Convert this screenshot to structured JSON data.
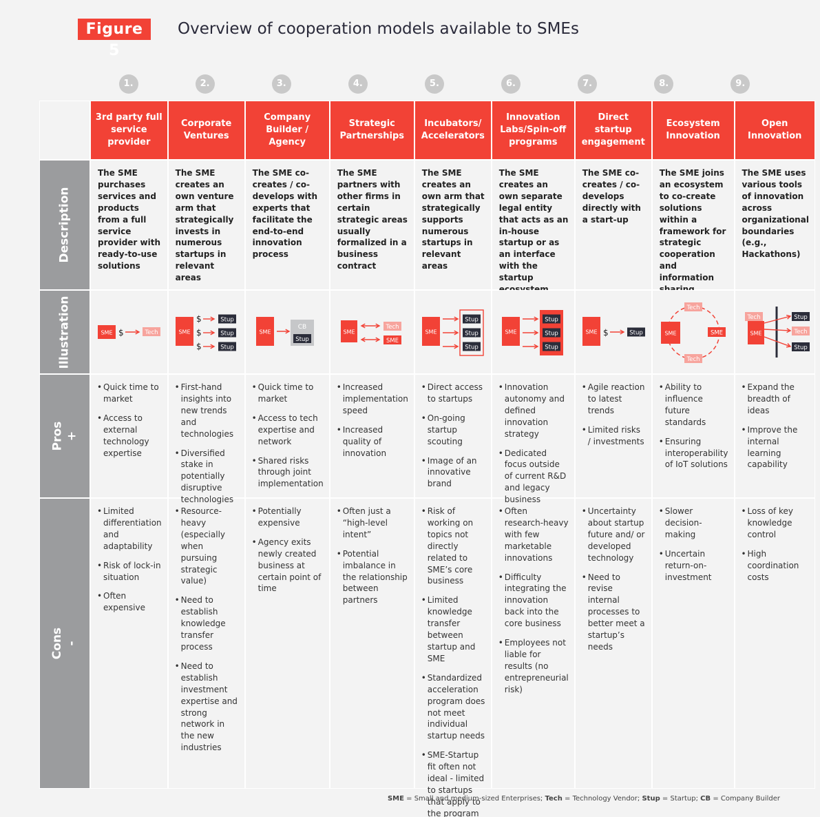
{
  "figure_label": "Figure 5",
  "title": "Overview of cooperation models available to SMEs",
  "colors": {
    "accent": "#f24236",
    "dark": "#2b2d3a",
    "light_accent": "#f7a49d",
    "grey": "#9b9c9e"
  },
  "row_labels": {
    "description": "Description",
    "illustration": "Illustration",
    "pros": "Pros",
    "pros_sign": "+",
    "cons": "Cons",
    "cons_sign": "-"
  },
  "icon_labels": {
    "sme": "SME",
    "tech": "Tech",
    "stup": "Stup",
    "cb": "CB",
    "dollar": "$"
  },
  "models": [
    {
      "num": "1.",
      "name": "3rd party full service provider",
      "description": "The SME purchases services and products from a full service provider with ready-to-use solutions",
      "pros": [
        "Quick time to market",
        "Access to external technology expertise"
      ],
      "cons": [
        "Limited differentiation and adaptability",
        "Risk of lock-in situation",
        "Often expensive"
      ]
    },
    {
      "num": "2.",
      "name": "Corporate Ventures",
      "description": "The SME creates an own venture arm that strategically invests in numerous startups in relevant areas",
      "pros": [
        "First-hand insights into new trends and technologies",
        "Diversified stake in potentially disruptive technologies"
      ],
      "cons": [
        "Resource-heavy (especially when pursuing strategic value)",
        "Need to establish knowledge transfer process",
        "Need to establish investment expertise and strong network in the new industries"
      ]
    },
    {
      "num": "3.",
      "name": "Company Builder / Agency",
      "description": "The SME co-creates / co-develops with experts that facilitate the end-to-end innovation process",
      "pros": [
        "Quick time to market",
        "Access to tech expertise and network",
        "Shared risks through joint implementation"
      ],
      "cons": [
        "Potentially expensive",
        "Agency exits newly created business at certain point of time"
      ]
    },
    {
      "num": "4.",
      "name": "Strategic Partnerships",
      "description": "The SME partners with other firms in certain strategic areas usually formalized in a business contract",
      "pros": [
        "Increased implementation speed",
        "Increased quality of innovation"
      ],
      "cons": [
        "Often just a “high-level intent”",
        "Potential imbalance in the relationship between partners"
      ]
    },
    {
      "num": "5.",
      "name": "Incubators/ Accelerators",
      "description": "The SME creates an own arm that strategically supports numerous startups in relevant areas",
      "pros": [
        "Direct access to startups",
        "On-going startup scouting",
        "Image of an innovative brand"
      ],
      "cons": [
        "Risk of working on topics not directly related to SME’s core business",
        "Limited knowledge transfer between startup and SME",
        "Standardized acceleration program does not meet individual startup needs",
        "SME-Startup fit often not ideal - limited to startups that apply to the program"
      ]
    },
    {
      "num": "6.",
      "name": "Innovation Labs/Spin-off programs",
      "description": "The SME creates an own separate legal entity that acts as an in-house startup or as an interface with the startup ecosystem",
      "pros": [
        "Innovation autonomy and defined innovation strategy",
        "Dedicated focus outside of current R&D and legacy business"
      ],
      "cons": [
        "Often research-heavy with few marketable innovations",
        "Difficulty integrating the innovation back into the core business",
        "Employees not liable for results (no entrepreneurial risk)"
      ]
    },
    {
      "num": "7.",
      "name": "Direct startup engagement",
      "description": "The SME co-creates / co-develops directly with a start-up",
      "pros": [
        "Agile reaction to latest trends",
        "Limited risks / investments"
      ],
      "cons": [
        "Uncertainty about startup future and/ or developed technology",
        "Need to revise internal processes to better meet a startup’s needs"
      ]
    },
    {
      "num": "8.",
      "name": "Ecosystem Innovation",
      "description": "The SME joins an ecosystem to co-create solutions within a framework for strategic cooperation and information sharing",
      "pros": [
        "Ability to influence future standards",
        "Ensuring interoperability of IoT solutions"
      ],
      "cons": [
        "Slower decision-making",
        "Uncertain return-on-investment"
      ]
    },
    {
      "num": "9.",
      "name": "Open Innovation",
      "description": "The SME uses various tools of innovation across organizational boundaries (e.g., Hackathons)",
      "pros": [
        "Expand the breadth of ideas",
        "Improve the internal learning capability"
      ],
      "cons": [
        "Loss of key knowledge control",
        "High coordination costs"
      ]
    }
  ],
  "legend": [
    {
      "abbr": "SME",
      "text": "= Small and medium-sized Enterprises;"
    },
    {
      "abbr": "Tech",
      "text": "= Technology Vendor;"
    },
    {
      "abbr": "Stup",
      "text": "= Startup;"
    },
    {
      "abbr": "CB",
      "text": "= Company Builder"
    }
  ]
}
